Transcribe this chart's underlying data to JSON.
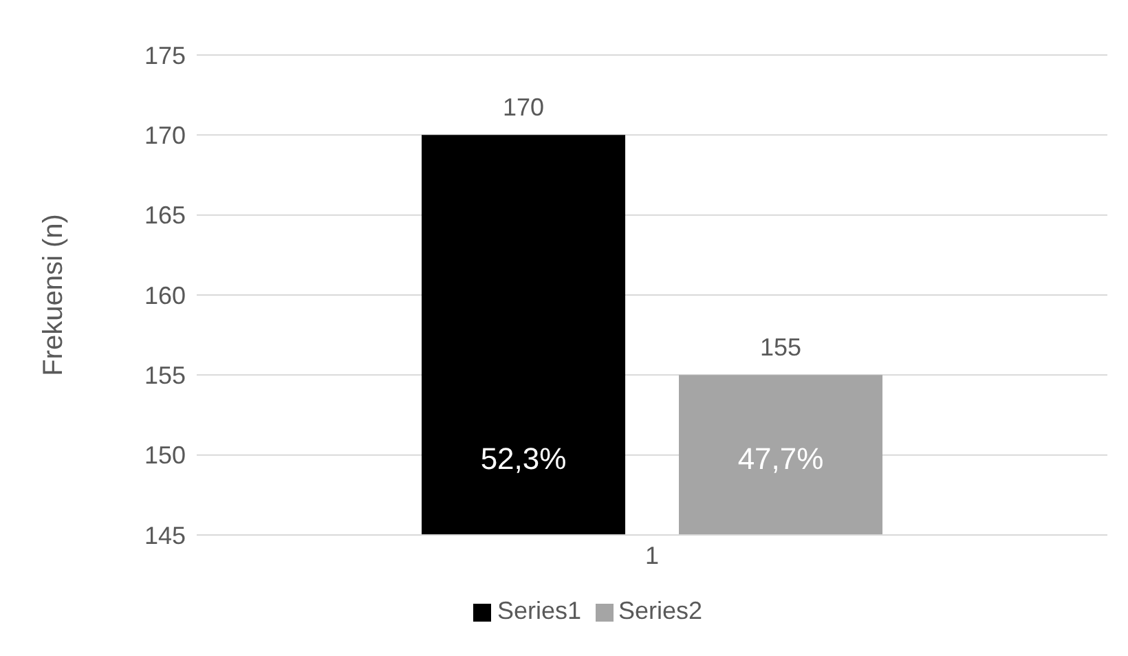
{
  "chart_data": {
    "type": "bar",
    "ylabel": "Frekuensi (n)",
    "categories": [
      "1"
    ],
    "series": [
      {
        "name": "Series1",
        "color": "#000000",
        "values": [
          170
        ]
      },
      {
        "name": "Series2",
        "color": "#a5a5a5",
        "values": [
          155
        ]
      }
    ],
    "ylim": [
      145,
      175
    ],
    "yticks": [
      145,
      150,
      155,
      160,
      165,
      170,
      175
    ],
    "grid": "y",
    "legend": "bottom",
    "data_labels": true,
    "annotations": [
      "52,3%",
      "47,7%"
    ]
  }
}
